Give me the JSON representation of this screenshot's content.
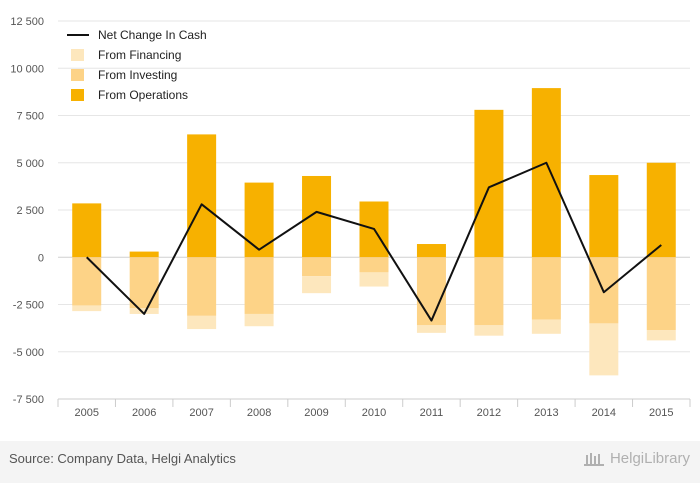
{
  "chart_data": {
    "type": "bar",
    "stacked": true,
    "categories": [
      "2005",
      "2006",
      "2007",
      "2008",
      "2009",
      "2010",
      "2011",
      "2012",
      "2013",
      "2014",
      "2015"
    ],
    "ylim": [
      -7500,
      12500
    ],
    "yticks": [
      -7500,
      -5000,
      -2500,
      0,
      2500,
      5000,
      7500,
      10000,
      12500
    ],
    "ytick_labels": [
      "-7 500",
      "-5 000",
      "-2 500",
      "0",
      "2 500",
      "5 000",
      "7 500",
      "10 000",
      "12 500"
    ],
    "grid": true,
    "legend_position": "top-left",
    "series": [
      {
        "name": "From Financing",
        "kind": "bar",
        "color": "#fde7bd",
        "values": [
          -300,
          -300,
          -700,
          -650,
          -900,
          -750,
          -400,
          -550,
          -750,
          -2750,
          -550
        ]
      },
      {
        "name": "From Investing",
        "kind": "bar",
        "color": "#fdd387",
        "values": [
          -2550,
          -2700,
          -3100,
          -3000,
          -1000,
          -800,
          -3600,
          -3600,
          -3300,
          -3500,
          -3850
        ]
      },
      {
        "name": "From Operations",
        "kind": "bar",
        "color": "#f7b100",
        "values": [
          2850,
          300,
          6500,
          3950,
          4300,
          2950,
          700,
          7800,
          8950,
          4350,
          5000
        ]
      },
      {
        "name": "Net Change In Cash",
        "kind": "line",
        "color": "#111111",
        "values": [
          0,
          -3000,
          2800,
          400,
          2400,
          1500,
          -3350,
          3700,
          5000,
          -1850,
          650
        ]
      }
    ],
    "legend_order": [
      "Net Change In Cash",
      "From Financing",
      "From Investing",
      "From Operations"
    ]
  },
  "footer": {
    "source": "Source: Company Data, Helgi Analytics",
    "brand": "HelgiLibrary"
  }
}
